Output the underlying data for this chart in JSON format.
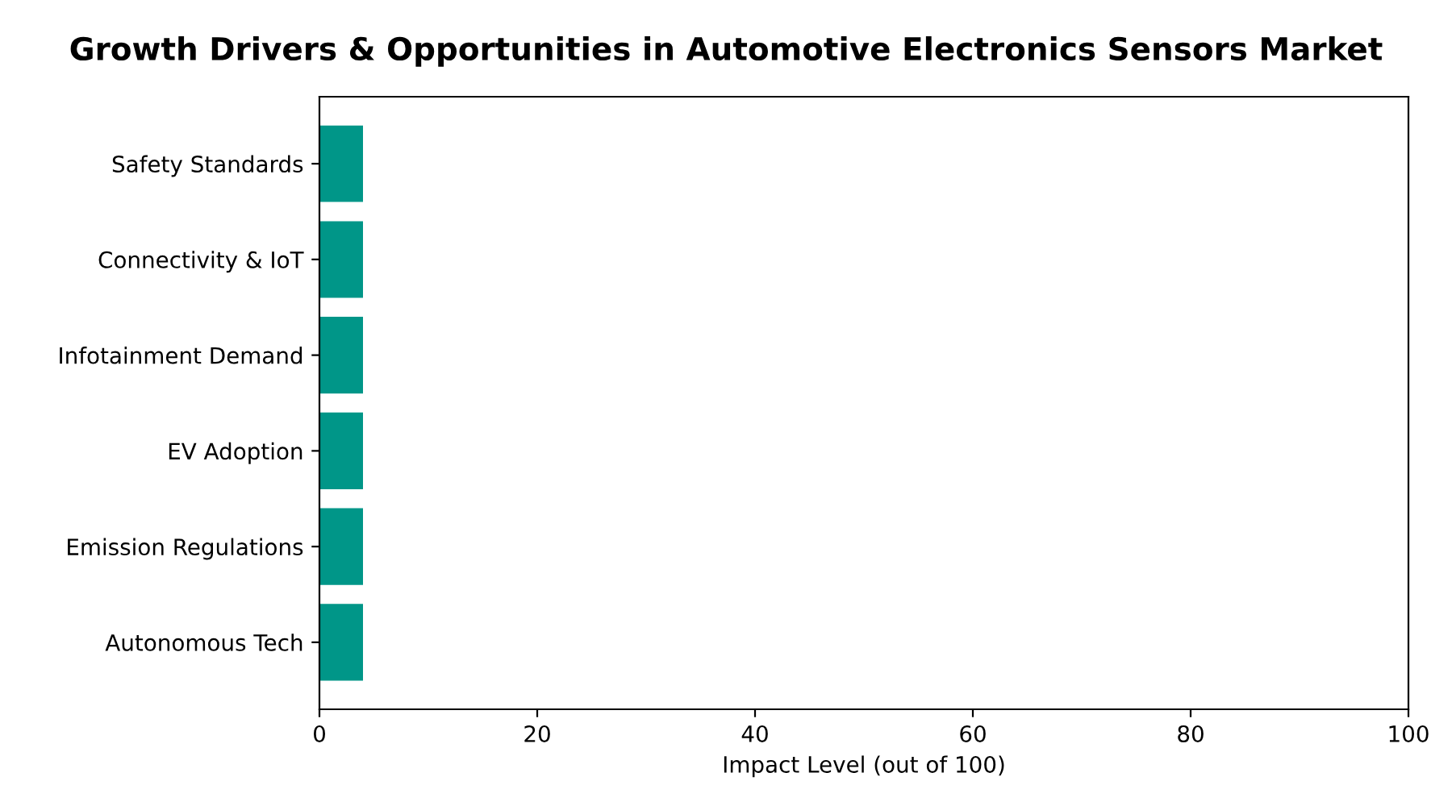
{
  "chart_data": {
    "type": "bar",
    "orientation": "horizontal",
    "title": "Growth Drivers & Opportunities in Automotive Electronics Sensors Market",
    "xlabel": "Impact Level (out of 100)",
    "categories": [
      "Safety Standards",
      "Connectivity & IoT",
      "Infotainment Demand",
      "EV Adoption",
      "Emission Regulations",
      "Autonomous Tech"
    ],
    "values": [
      4,
      4,
      4,
      4,
      4,
      4
    ],
    "color": "#009688",
    "xlim": [
      0,
      100
    ],
    "xticks": [
      0,
      20,
      40,
      60,
      80,
      100
    ],
    "grid": false
  }
}
